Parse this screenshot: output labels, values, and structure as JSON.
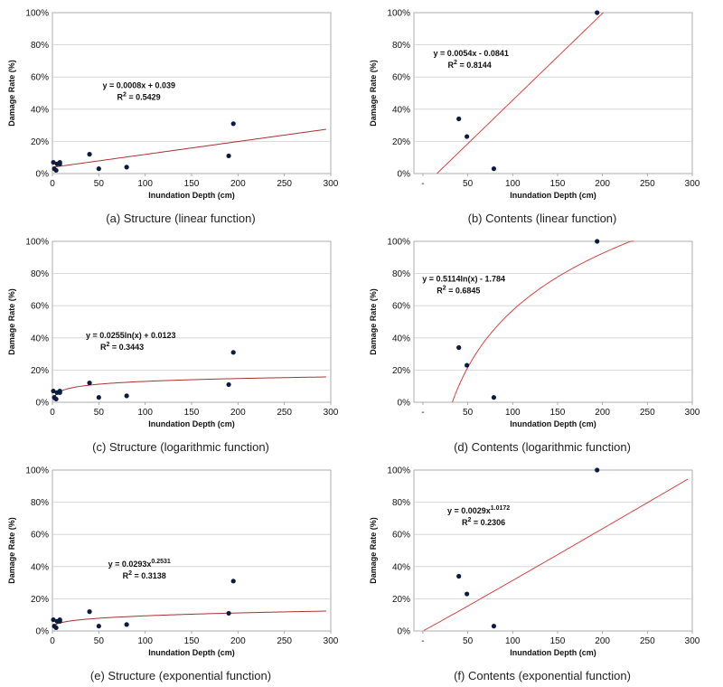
{
  "chart_data": [
    {
      "id": "a",
      "type": "scatter",
      "caption": "(a) Structure (linear function)",
      "xlabel": "Inundation Depth (cm)",
      "ylabel": "Damage Rate (%)",
      "xlim": [
        0,
        300
      ],
      "ylim": [
        0,
        1
      ],
      "x_ticks": [
        "0",
        "50",
        "100",
        "150",
        "200",
        "250",
        "300"
      ],
      "y_ticks": [
        "0%",
        "20%",
        "40%",
        "60%",
        "80%",
        "100%"
      ],
      "points": [
        [
          1,
          0.07
        ],
        [
          2,
          0.03
        ],
        [
          4,
          0.02
        ],
        [
          5,
          0.06
        ],
        [
          8,
          0.07
        ],
        [
          8,
          0.06
        ],
        [
          40,
          0.12
        ],
        [
          50,
          0.03
        ],
        [
          80,
          0.04
        ],
        [
          190,
          0.11
        ],
        [
          195,
          0.31
        ]
      ],
      "trendline": {
        "kind": "linear",
        "a": 0.0008,
        "b": 0.039,
        "x_from": 0,
        "x_to": 295
      },
      "equation": "y = 0.0008x + 0.039",
      "r2_label": "R",
      "r2_sup": "2",
      "r2_value": " = 0.5429",
      "label_pos": [
        0.18,
        0.47
      ],
      "colors": {
        "points": "#0d1b3e",
        "trend": "#a83232"
      }
    },
    {
      "id": "b",
      "type": "scatter",
      "caption": "(b) Contents (linear function)",
      "xlabel": "Inundation Depth (cm)",
      "ylabel": "Damage Rate (%)",
      "xlim": [
        -10,
        300
      ],
      "ylim": [
        0,
        1
      ],
      "x_ticks": [
        "-",
        "50",
        "100",
        "150",
        "200",
        "250",
        "300"
      ],
      "y_ticks": [
        "0%",
        "20%",
        "40%",
        "60%",
        "80%",
        "100%"
      ],
      "points": [
        [
          40,
          0.34
        ],
        [
          49,
          0.23
        ],
        [
          79,
          0.03
        ],
        [
          194,
          1.0
        ]
      ],
      "trendline": {
        "kind": "linear",
        "a": 0.0054,
        "b": -0.0841,
        "x_from": 15.6,
        "x_to": 200.8
      },
      "equation": "y = 0.0054x - 0.0841",
      "r2_label": "R",
      "r2_sup": "2",
      "r2_value": " = 0.8144",
      "label_pos": [
        0.07,
        0.27
      ],
      "colors": {
        "points": "#0d1b3e",
        "trend": "#d64545"
      }
    },
    {
      "id": "c",
      "type": "scatter",
      "caption": "(c) Structure (logarithmic function)",
      "xlabel": "Inundation Depth (cm)",
      "ylabel": "Damage Rate (%)",
      "xlim": [
        0,
        300
      ],
      "ylim": [
        0,
        1
      ],
      "x_ticks": [
        "0",
        "50",
        "100",
        "150",
        "200",
        "250",
        "300"
      ],
      "y_ticks": [
        "0%",
        "20%",
        "40%",
        "60%",
        "80%",
        "100%"
      ],
      "points": [
        [
          1,
          0.07
        ],
        [
          2,
          0.03
        ],
        [
          4,
          0.02
        ],
        [
          5,
          0.06
        ],
        [
          8,
          0.07
        ],
        [
          8,
          0.06
        ],
        [
          40,
          0.12
        ],
        [
          50,
          0.03
        ],
        [
          80,
          0.04
        ],
        [
          190,
          0.11
        ],
        [
          195,
          0.31
        ]
      ],
      "trendline": {
        "kind": "log",
        "a": 0.0255,
        "b": 0.0123,
        "x_from": 1,
        "x_to": 295
      },
      "equation": "y = 0.0255ln(x) + 0.0123",
      "r2_label": "R",
      "r2_sup": "2",
      "r2_value": " = 0.3443",
      "label_pos": [
        0.12,
        0.6
      ],
      "colors": {
        "points": "#0d1b3e",
        "trend": "#a83232"
      }
    },
    {
      "id": "d",
      "type": "scatter",
      "caption": "(d) Contents (logarithmic function)",
      "xlabel": "Inundation Depth (cm)",
      "ylabel": "Damage Rate (%)",
      "xlim": [
        -10,
        300
      ],
      "ylim": [
        0,
        1
      ],
      "x_ticks": [
        "-",
        "50",
        "100",
        "150",
        "200",
        "250",
        "300"
      ],
      "y_ticks": [
        "0%",
        "20%",
        "40%",
        "60%",
        "80%",
        "100%"
      ],
      "points": [
        [
          40,
          0.34
        ],
        [
          49,
          0.23
        ],
        [
          79,
          0.03
        ],
        [
          194,
          1.0
        ]
      ],
      "trendline": {
        "kind": "log",
        "a": 0.5114,
        "b": -1.784,
        "x_from": 32.8,
        "x_to": 235
      },
      "equation": "y = 0.5114ln(x) - 1.784",
      "r2_label": "R",
      "r2_sup": "2",
      "r2_value": " = 0.6845",
      "label_pos": [
        0.03,
        0.25
      ],
      "colors": {
        "points": "#0d1b3e",
        "trend": "#d64545"
      }
    },
    {
      "id": "e",
      "type": "scatter",
      "caption": "(e) Structure (exponential function)",
      "xlabel": "Inundation Depth (cm)",
      "ylabel": "Damage Rate (%)",
      "xlim": [
        0,
        300
      ],
      "ylim": [
        0,
        1
      ],
      "x_ticks": [
        "0",
        "50",
        "100",
        "150",
        "200",
        "250",
        "300"
      ],
      "y_ticks": [
        "0%",
        "20%",
        "40%",
        "60%",
        "80%",
        "100%"
      ],
      "points": [
        [
          1,
          0.07
        ],
        [
          2,
          0.03
        ],
        [
          4,
          0.02
        ],
        [
          5,
          0.06
        ],
        [
          8,
          0.07
        ],
        [
          8,
          0.06
        ],
        [
          40,
          0.12
        ],
        [
          50,
          0.03
        ],
        [
          80,
          0.04
        ],
        [
          190,
          0.11
        ],
        [
          195,
          0.31
        ]
      ],
      "trendline": {
        "kind": "power",
        "a": 0.0293,
        "b": 0.2531,
        "x_from": 1,
        "x_to": 295
      },
      "equation": "y = 0.0293x",
      "equation_sup": "0.2531",
      "r2_label": "R",
      "r2_sup": "2",
      "r2_value": " = 0.3138",
      "label_pos": [
        0.2,
        0.6
      ],
      "colors": {
        "points": "#0d1b3e",
        "trend": "#a83232"
      }
    },
    {
      "id": "f",
      "type": "scatter",
      "caption": "(f) Contents (exponential function)",
      "xlabel": "Inundation Depth (cm)",
      "ylabel": "Damage Rate (%)",
      "xlim": [
        -10,
        300
      ],
      "ylim": [
        0,
        1
      ],
      "x_ticks": [
        "-",
        "50",
        "100",
        "150",
        "200",
        "250",
        "300"
      ],
      "y_ticks": [
        "0%",
        "20%",
        "40%",
        "60%",
        "80%",
        "100%"
      ],
      "points": [
        [
          40,
          0.34
        ],
        [
          49,
          0.23
        ],
        [
          79,
          0.03
        ],
        [
          194,
          1.0
        ]
      ],
      "trendline": {
        "kind": "power",
        "a": 0.0029,
        "b": 1.0172,
        "x_from": 1,
        "x_to": 295
      },
      "equation": "y = 0.0029x",
      "equation_sup": "1.0172",
      "r2_label": "R",
      "r2_sup": "2",
      "r2_value": " = 0.2306",
      "label_pos": [
        0.12,
        0.27
      ],
      "colors": {
        "points": "#0d1b3e",
        "trend": "#d64545"
      }
    }
  ]
}
